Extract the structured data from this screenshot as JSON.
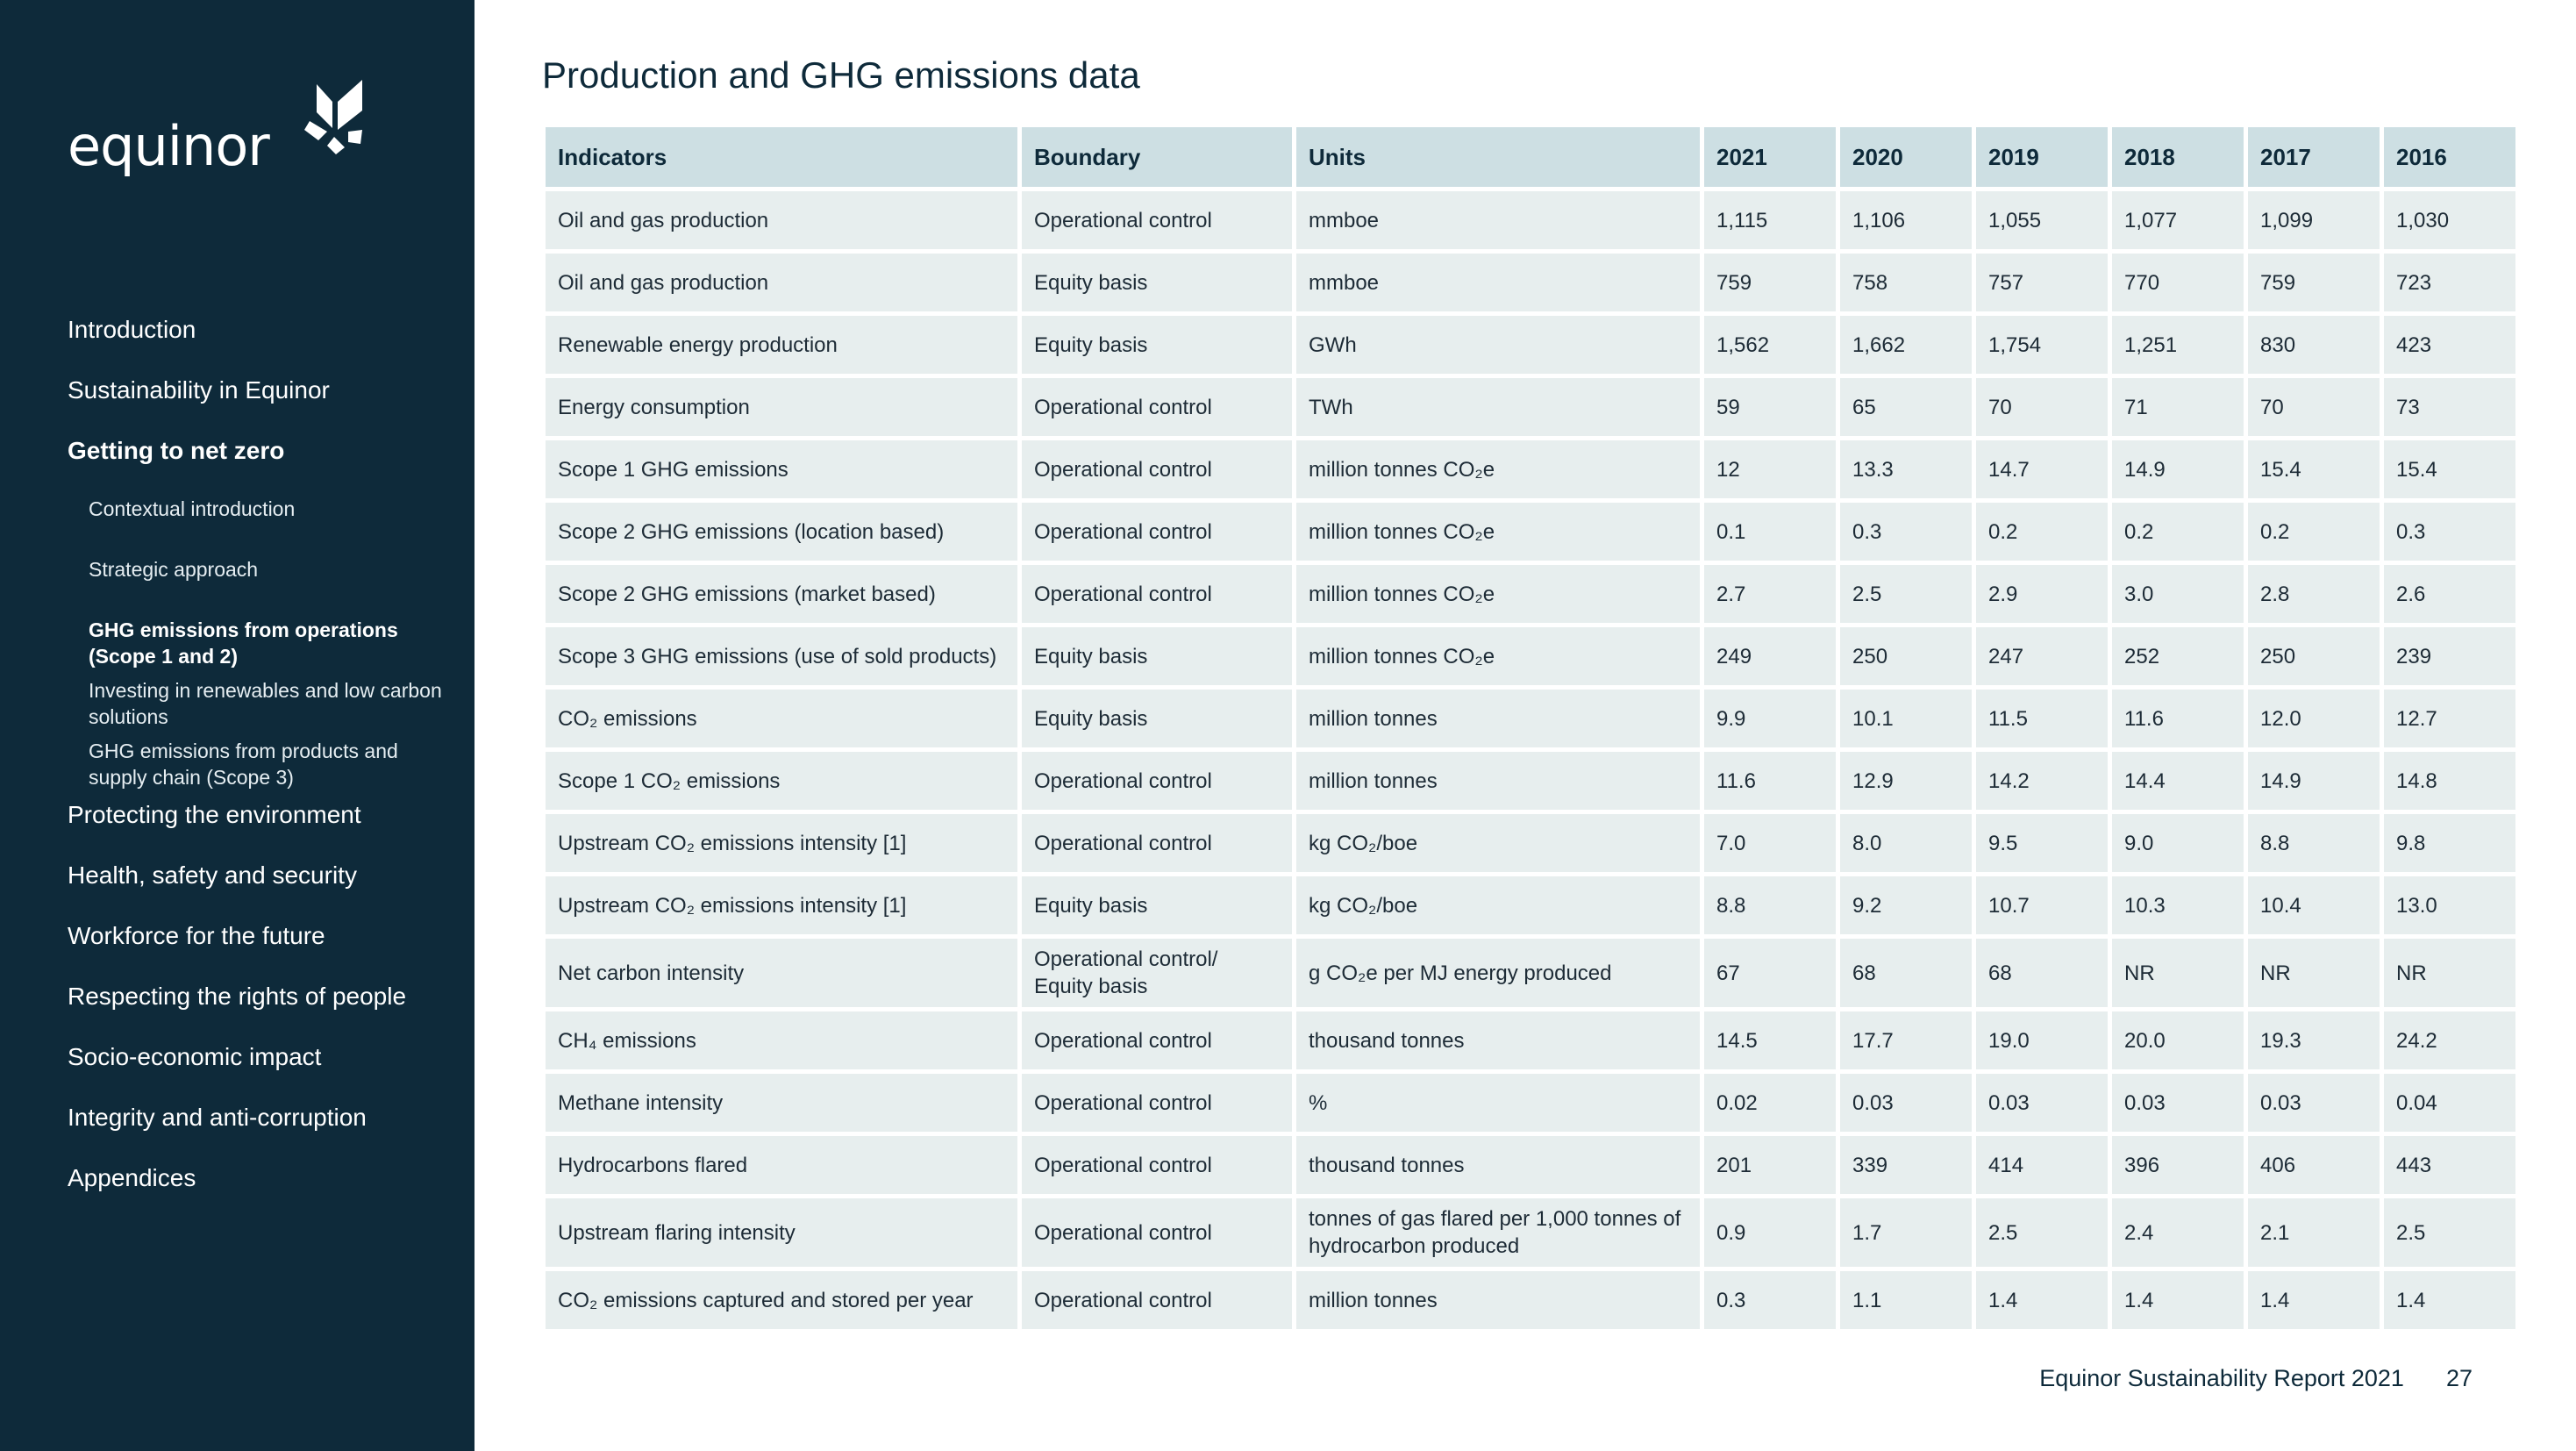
{
  "sidebar": {
    "logo_text": "equinor",
    "nav": [
      {
        "label": "Introduction",
        "level": 1,
        "active": false
      },
      {
        "label": "Sustainability in Equinor",
        "level": 1,
        "active": false
      },
      {
        "label": "Getting to net zero",
        "level": 1,
        "active": true
      },
      {
        "label": "Contextual introduction",
        "level": 2,
        "active": false
      },
      {
        "label": "Strategic approach",
        "level": 2,
        "active": false
      },
      {
        "label": "GHG emissions from operations (Scope 1 and 2)",
        "level": 2,
        "active": true
      },
      {
        "label": "Investing in renewables and low carbon solutions",
        "level": 2,
        "active": false
      },
      {
        "label": "GHG emissions from products and supply chain (Scope 3)",
        "level": 2,
        "active": false
      },
      {
        "label": "Protecting the environment",
        "level": 1,
        "active": false
      },
      {
        "label": "Health, safety and security",
        "level": 1,
        "active": false
      },
      {
        "label": "Workforce for the future",
        "level": 1,
        "active": false
      },
      {
        "label": "Respecting the rights of people",
        "level": 1,
        "active": false
      },
      {
        "label": "Socio-economic impact",
        "level": 1,
        "active": false
      },
      {
        "label": "Integrity and anti-corruption",
        "level": 1,
        "active": false
      },
      {
        "label": "Appendices",
        "level": 1,
        "active": false
      }
    ]
  },
  "page": {
    "title": "Production and GHG emissions data",
    "footer_text": "Equinor Sustainability Report 2021",
    "page_number": "27"
  },
  "table": {
    "headers": [
      "Indicators",
      "Boundary",
      "Units",
      "2021",
      "2020",
      "2019",
      "2018",
      "2017",
      "2016"
    ],
    "rows": [
      {
        "ind": "Oil and gas production",
        "bound": "Operational control",
        "unit": "mmboe",
        "values": [
          "1,115",
          "1,106",
          "1,055",
          "1,077",
          "1,099",
          "1,030"
        ]
      },
      {
        "ind": "Oil and gas production",
        "bound": "Equity basis",
        "unit": "mmboe",
        "values": [
          "759",
          "758",
          "757",
          "770",
          "759",
          "723"
        ]
      },
      {
        "ind": "Renewable energy production",
        "bound": "Equity basis",
        "unit": "GWh",
        "values": [
          "1,562",
          "1,662",
          "1,754",
          "1,251",
          "830",
          "423"
        ]
      },
      {
        "ind": "Energy consumption",
        "bound": "Operational control",
        "unit": "TWh",
        "values": [
          "59",
          "65",
          "70",
          "71",
          "70",
          "73"
        ]
      },
      {
        "ind": "Scope 1 GHG emissions",
        "bound": "Operational control",
        "unit": "million tonnes CO₂e",
        "values": [
          "12",
          "13.3",
          "14.7",
          "14.9",
          "15.4",
          "15.4"
        ]
      },
      {
        "ind": "Scope 2 GHG emissions (location based)",
        "bound": "Operational control",
        "unit": "million tonnes CO₂e",
        "values": [
          "0.1",
          "0.3",
          "0.2",
          "0.2",
          "0.2",
          "0.3"
        ]
      },
      {
        "ind": "Scope 2 GHG emissions (market based)",
        "bound": "Operational control",
        "unit": "million tonnes CO₂e",
        "values": [
          "2.7",
          "2.5",
          "2.9",
          "3.0",
          "2.8",
          "2.6"
        ]
      },
      {
        "ind": "Scope 3 GHG emissions (use of sold products)",
        "bound": "Equity basis",
        "unit": "million tonnes CO₂e",
        "values": [
          "249",
          "250",
          "247",
          "252",
          "250",
          "239"
        ]
      },
      {
        "ind": "CO₂ emissions",
        "bound": "Equity basis",
        "unit": "million tonnes",
        "values": [
          "9.9",
          "10.1",
          "11.5",
          "11.6",
          "12.0",
          "12.7"
        ]
      },
      {
        "ind": "Scope 1 CO₂ emissions",
        "bound": "Operational control",
        "unit": "million tonnes",
        "values": [
          "11.6",
          "12.9",
          "14.2",
          "14.4",
          "14.9",
          "14.8"
        ]
      },
      {
        "ind": "Upstream CO₂ emissions intensity [1]",
        "bound": "Operational control",
        "unit": "kg CO₂/boe",
        "values": [
          "7.0",
          "8.0",
          "9.5",
          "9.0",
          "8.8",
          "9.8"
        ]
      },
      {
        "ind": "Upstream CO₂ emissions intensity [1]",
        "bound": "Equity basis",
        "unit": "kg CO₂/boe",
        "values": [
          "8.8",
          "9.2",
          "10.7",
          "10.3",
          "10.4",
          "13.0"
        ]
      },
      {
        "ind": "Net carbon intensity",
        "bound": "Operational control/ Equity basis",
        "unit": "g CO₂e per MJ energy produced",
        "values": [
          "67",
          "68",
          "68",
          "NR",
          "NR",
          "NR"
        ]
      },
      {
        "ind": "CH₄ emissions",
        "bound": "Operational control",
        "unit": "thousand tonnes",
        "values": [
          "14.5",
          "17.7",
          "19.0",
          "20.0",
          "19.3",
          "24.2"
        ]
      },
      {
        "ind": "Methane intensity",
        "bound": "Operational control",
        "unit": "%",
        "values": [
          "0.02",
          "0.03",
          "0.03",
          "0.03",
          "0.03",
          "0.04"
        ]
      },
      {
        "ind": "Hydrocarbons flared",
        "bound": "Operational control",
        "unit": "thousand tonnes",
        "values": [
          "201",
          "339",
          "414",
          "396",
          "406",
          "443"
        ]
      },
      {
        "ind": "Upstream flaring intensity",
        "bound": "Operational control",
        "unit": "tonnes of gas flared per 1,000 tonnes of hydrocarbon produced",
        "values": [
          "0.9",
          "1.7",
          "2.5",
          "2.4",
          "2.1",
          "2.5"
        ]
      },
      {
        "ind": "CO₂ emissions captured and stored per year",
        "bound": "Operational control",
        "unit": "million tonnes",
        "values": [
          "0.3",
          "1.1",
          "1.4",
          "1.4",
          "1.4",
          "1.4"
        ]
      }
    ]
  },
  "colors": {
    "sidebar_bg": "#0e2a3a",
    "header_bg": "#cddfe3",
    "cell_bg": "#e7eeee"
  }
}
